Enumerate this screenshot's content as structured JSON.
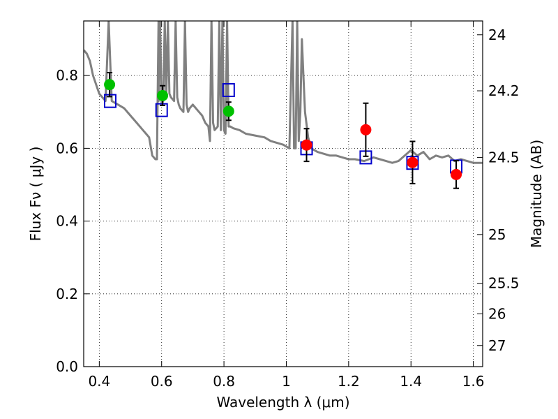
{
  "chart_data": {
    "type": "scatter",
    "xlabel": "Wavelength  λ (μm)",
    "ylabel": "Flux  Fν  ( μJy )",
    "ylabel_right": "Magnitude (AB)",
    "xlim": [
      0.35,
      1.63
    ],
    "ylim": [
      0.0,
      0.95
    ],
    "grid": true,
    "x_ticks": [
      0.4,
      0.6,
      0.8,
      1.0,
      1.2,
      1.4,
      1.6
    ],
    "x_tick_labels": [
      "0.4",
      "0.6",
      "0.8",
      "1",
      "1.2",
      "1.4",
      "1.6"
    ],
    "y_ticks": [
      0.0,
      0.2,
      0.4,
      0.6,
      0.8
    ],
    "y_tick_labels": [
      "0.0",
      "0.2",
      "0.4",
      "0.6",
      "0.8"
    ],
    "right_ticks": [
      {
        "label": "24",
        "flux": 0.912
      },
      {
        "label": "24.2",
        "flux": 0.758
      },
      {
        "label": "24.5",
        "flux": 0.575
      },
      {
        "label": "25",
        "flux": 0.363
      },
      {
        "label": "25.5",
        "flux": 0.229
      },
      {
        "label": "26",
        "flux": 0.145
      },
      {
        "label": "27",
        "flux": 0.058
      }
    ],
    "series": [
      {
        "kind": "line",
        "color": "#808080",
        "x": [
          0.35,
          0.36,
          0.37,
          0.38,
          0.4,
          0.42,
          0.43,
          0.44,
          0.46,
          0.48,
          0.5,
          0.52,
          0.54,
          0.55,
          0.56,
          0.57,
          0.58,
          0.585,
          0.59,
          0.59,
          0.595,
          0.6,
          0.605,
          0.61,
          0.615,
          0.62,
          0.625,
          0.63,
          0.64,
          0.645,
          0.65,
          0.655,
          0.66,
          0.67,
          0.675,
          0.68,
          0.685,
          0.69,
          0.7,
          0.71,
          0.72,
          0.73,
          0.74,
          0.75,
          0.755,
          0.76,
          0.765,
          0.77,
          0.78,
          0.785,
          0.79,
          0.795,
          0.8,
          0.805,
          0.81,
          0.815,
          0.82,
          0.83,
          0.85,
          0.87,
          0.9,
          0.93,
          0.95,
          0.97,
          0.99,
          1.0,
          1.01,
          1.02,
          1.025,
          1.03,
          1.035,
          1.04,
          1.045,
          1.05,
          1.055,
          1.06,
          1.07,
          1.08,
          1.1,
          1.12,
          1.14,
          1.16,
          1.18,
          1.2,
          1.22,
          1.25,
          1.28,
          1.3,
          1.32,
          1.34,
          1.36,
          1.38,
          1.4,
          1.42,
          1.44,
          1.46,
          1.48,
          1.5,
          1.52,
          1.54,
          1.56,
          1.58,
          1.6,
          1.63
        ],
        "y": [
          0.87,
          0.86,
          0.84,
          0.8,
          0.75,
          0.73,
          0.95,
          0.73,
          0.72,
          0.71,
          0.69,
          0.67,
          0.65,
          0.64,
          0.63,
          0.58,
          0.57,
          0.57,
          0.95,
          0.73,
          0.95,
          0.72,
          0.73,
          0.95,
          0.74,
          0.95,
          0.75,
          0.74,
          0.73,
          0.95,
          0.74,
          0.72,
          0.71,
          0.7,
          0.95,
          0.72,
          0.7,
          0.71,
          0.72,
          0.71,
          0.7,
          0.69,
          0.67,
          0.66,
          0.62,
          0.95,
          0.67,
          0.65,
          0.66,
          0.95,
          0.65,
          0.95,
          0.65,
          0.64,
          0.95,
          0.66,
          0.66,
          0.655,
          0.65,
          0.64,
          0.635,
          0.63,
          0.62,
          0.615,
          0.61,
          0.605,
          0.6,
          0.95,
          0.6,
          0.6,
          0.95,
          0.62,
          0.7,
          0.9,
          0.8,
          0.7,
          0.63,
          0.6,
          0.59,
          0.585,
          0.58,
          0.58,
          0.575,
          0.57,
          0.57,
          0.565,
          0.575,
          0.57,
          0.565,
          0.56,
          0.565,
          0.58,
          0.595,
          0.58,
          0.59,
          0.57,
          0.58,
          0.575,
          0.58,
          0.565,
          0.57,
          0.565,
          0.56,
          0.56
        ]
      },
      {
        "kind": "points",
        "marker": "open-square",
        "color": "#0000cc",
        "x": [
          0.435,
          0.6,
          0.815,
          1.065,
          1.255,
          1.405,
          1.545
        ],
        "y": [
          0.73,
          0.705,
          0.76,
          0.6,
          0.575,
          0.56,
          0.55
        ]
      },
      {
        "kind": "points",
        "marker": "filled-circle",
        "color": "#00c000",
        "x": [
          0.433,
          0.603,
          0.815
        ],
        "y": [
          0.775,
          0.745,
          0.702
        ],
        "yerr": [
          0.033,
          0.027,
          0.025
        ]
      },
      {
        "kind": "points",
        "marker": "filled-circle",
        "color": "#ff0000",
        "x": [
          1.065,
          1.255,
          1.405,
          1.545
        ],
        "y": [
          0.609,
          0.651,
          0.561,
          0.528
        ],
        "yerr": [
          0.045,
          0.073,
          0.058,
          0.038
        ]
      }
    ]
  }
}
